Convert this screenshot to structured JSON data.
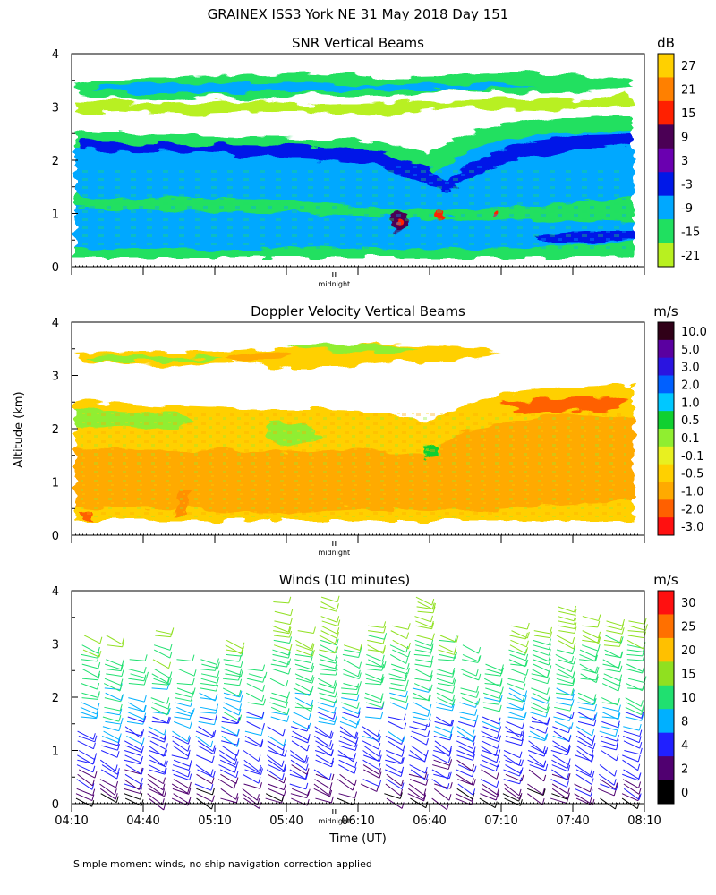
{
  "title": "GRAINEX ISS3 York NE  31 May 2018 Day 151",
  "footnote": "Simple moment winds, no ship navigation correction applied",
  "shared_ylabel": "Altitude (km)",
  "xlabel": "Time (UT)",
  "midnight_label": "midnight",
  "time_ticks": [
    "04:10",
    "04:40",
    "05:10",
    "05:40",
    "06:10",
    "06:40",
    "07:10",
    "07:40",
    "08:10"
  ],
  "chart_data": [
    {
      "type": "heatmap",
      "title": "SNR Vertical Beams",
      "unit": "dB",
      "ylim": [
        0,
        4
      ],
      "yticks": [
        "0",
        "1",
        "2",
        "3",
        "4"
      ],
      "colorbar": {
        "labels": [
          "27",
          "21",
          "15",
          "9",
          "3",
          "-3",
          "-9",
          "-15",
          "-21"
        ],
        "colors": [
          "#ffd000",
          "#ff8000",
          "#ff2000",
          "#4b0055",
          "#6a00b0",
          "#0018e8",
          "#00a8ff",
          "#20e060",
          "#b8f020"
        ]
      },
      "layers": [
        {
          "altitude_km": [
            3.3,
            3.7
          ],
          "snr_db": -18
        },
        {
          "altitude_km": [
            1.3,
            2.5
          ],
          "snr_db": -12
        },
        {
          "altitude_km": [
            0.1,
            1.3
          ],
          "snr_db": -9
        },
        {
          "altitude_km": [
            1.9,
            2.4
          ],
          "snr_db": -3
        }
      ]
    },
    {
      "type": "heatmap",
      "title": "Doppler Velocity Vertical Beams",
      "unit": "m/s",
      "ylim": [
        0,
        4
      ],
      "yticks": [
        "0",
        "1",
        "2",
        "3",
        "4"
      ],
      "colorbar": {
        "labels": [
          "10.0",
          "5.0",
          "3.0",
          "2.0",
          "1.0",
          "0.5",
          "0.1",
          "-0.1",
          "-0.5",
          "-1.0",
          "-2.0",
          "-3.0"
        ],
        "colors": [
          "#300018",
          "#5a00a0",
          "#2a14e0",
          "#0060ff",
          "#00c8ff",
          "#10d030",
          "#90ee30",
          "#e8f020",
          "#ffd000",
          "#ffaa00",
          "#ff6000",
          "#ff1010"
        ]
      },
      "layers": [
        {
          "altitude_km": [
            3.2,
            3.6
          ],
          "velocity_ms": -0.3
        },
        {
          "altitude_km": [
            0.1,
            2.5
          ],
          "velocity_ms": -0.5
        }
      ]
    },
    {
      "type": "barbs",
      "title": "Winds (10 minutes)",
      "unit": "m/s",
      "ylim": [
        0,
        4
      ],
      "yticks": [
        "0",
        "1",
        "2",
        "3",
        "4"
      ],
      "colorbar": {
        "labels": [
          "30",
          "25",
          "20",
          "15",
          "10",
          "8",
          "4",
          "2",
          "0"
        ],
        "colors": [
          "#ff1010",
          "#ff7000",
          "#ffc000",
          "#90e020",
          "#20e070",
          "#00b0ff",
          "#2020ff",
          "#500070",
          "#000000"
        ]
      },
      "speed_ranges": [
        {
          "altitude_km": [
            0,
            1.5
          ],
          "speed_ms": [
            2,
            8
          ]
        },
        {
          "altitude_km": [
            1.5,
            3.0
          ],
          "speed_ms": [
            8,
            15
          ]
        },
        {
          "altitude_km": [
            3.0,
            4.0
          ],
          "speed_ms": [
            15,
            20
          ]
        }
      ]
    }
  ]
}
